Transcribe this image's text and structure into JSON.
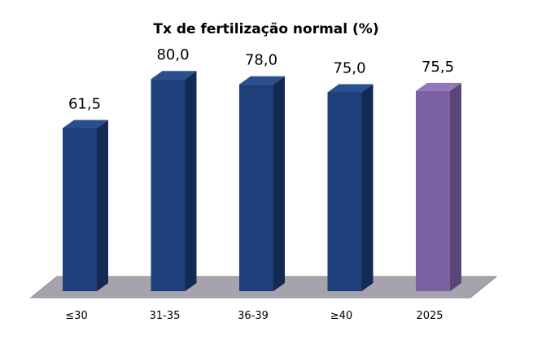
{
  "chart_data": {
    "type": "bar",
    "title": "Tx de fertilização normal (%)",
    "categories": [
      "≤30",
      "31-35",
      "36-39",
      "≥40",
      "2025"
    ],
    "values": [
      61.5,
      80.0,
      78.0,
      75.0,
      75.5
    ],
    "value_labels": [
      "61,5",
      "80,0",
      "78,0",
      "75,0",
      "75,5"
    ],
    "xlabel": "",
    "ylabel": "",
    "ylim": [
      0,
      100
    ],
    "grid": false,
    "legend": "none",
    "colors": {
      "default_front": "#1f3f7a",
      "default_side": "#142a52",
      "default_top": "#2a4f8f",
      "highlight_front": "#7d62a3",
      "highlight_side": "#5a4479",
      "highlight_top": "#9278b8",
      "floor": "#a6a3ad",
      "floor_edge": "#8d8a94"
    },
    "highlight_index": 4
  }
}
